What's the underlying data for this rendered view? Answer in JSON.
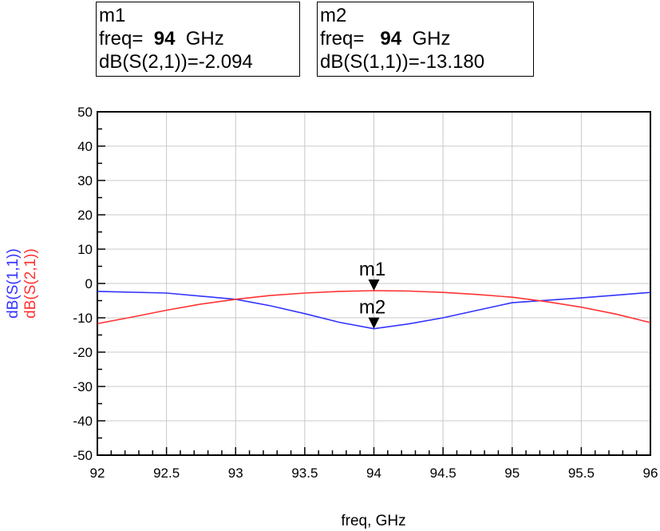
{
  "markers": [
    {
      "id": "m1",
      "name": "m1",
      "freq_prefix": "freq=",
      "freq_value": "94",
      "freq_unit": "GHz",
      "measure": "dB(S(2,1))=-2.094",
      "x": 94,
      "y": -2.094
    },
    {
      "id": "m2",
      "name": "m2",
      "freq_prefix": "freq=",
      "freq_value": "94",
      "freq_unit": "GHz",
      "measure": "dB(S(1,1))=-13.180",
      "x": 94,
      "y": -13.18
    }
  ],
  "chart_data": {
    "type": "line",
    "xlabel": "freq, GHz",
    "ylabel_series": [
      {
        "text": "dB(S(1,1))",
        "color": "#3333ff"
      },
      {
        "text": "dB(S(2,1))",
        "color": "#ff3333"
      }
    ],
    "xlim": [
      92,
      96
    ],
    "ylim": [
      -50,
      50
    ],
    "x_ticks": [
      92,
      92.5,
      93,
      93.5,
      94,
      94.5,
      95,
      95.5,
      96
    ],
    "x_tick_labels": [
      "92",
      "92.5",
      "93",
      "93.5",
      "94",
      "94.5",
      "95",
      "95.5",
      "96"
    ],
    "y_ticks": [
      50,
      40,
      30,
      20,
      10,
      0,
      -10,
      -20,
      -30,
      -40,
      -50
    ],
    "y_tick_labels": [
      "50",
      "40",
      "30",
      "20",
      "10",
      "0",
      "-10",
      "-20",
      "-30",
      "-40",
      "-50"
    ],
    "grid": true,
    "series": [
      {
        "name": "dB(S(1,1))",
        "color": "#3333ff",
        "x": [
          92,
          92.5,
          93,
          93.25,
          93.5,
          93.75,
          94,
          94.25,
          94.5,
          94.75,
          95,
          95.5,
          96
        ],
        "y": [
          -2.3,
          -2.8,
          -4.6,
          -6.5,
          -8.8,
          -11.3,
          -13.18,
          -11.8,
          -10.0,
          -7.8,
          -5.6,
          -4.2,
          -2.6
        ]
      },
      {
        "name": "dB(S(2,1))",
        "color": "#ff3333",
        "x": [
          92,
          92.25,
          92.5,
          92.75,
          93,
          93.25,
          93.5,
          93.75,
          94,
          94.25,
          94.5,
          94.75,
          95,
          95.25,
          95.5,
          95.75,
          96
        ],
        "y": [
          -11.7,
          -9.8,
          -7.8,
          -6.0,
          -4.6,
          -3.5,
          -2.8,
          -2.3,
          -2.094,
          -2.2,
          -2.6,
          -3.2,
          -4.0,
          -5.3,
          -6.9,
          -8.9,
          -11.4
        ]
      }
    ]
  }
}
